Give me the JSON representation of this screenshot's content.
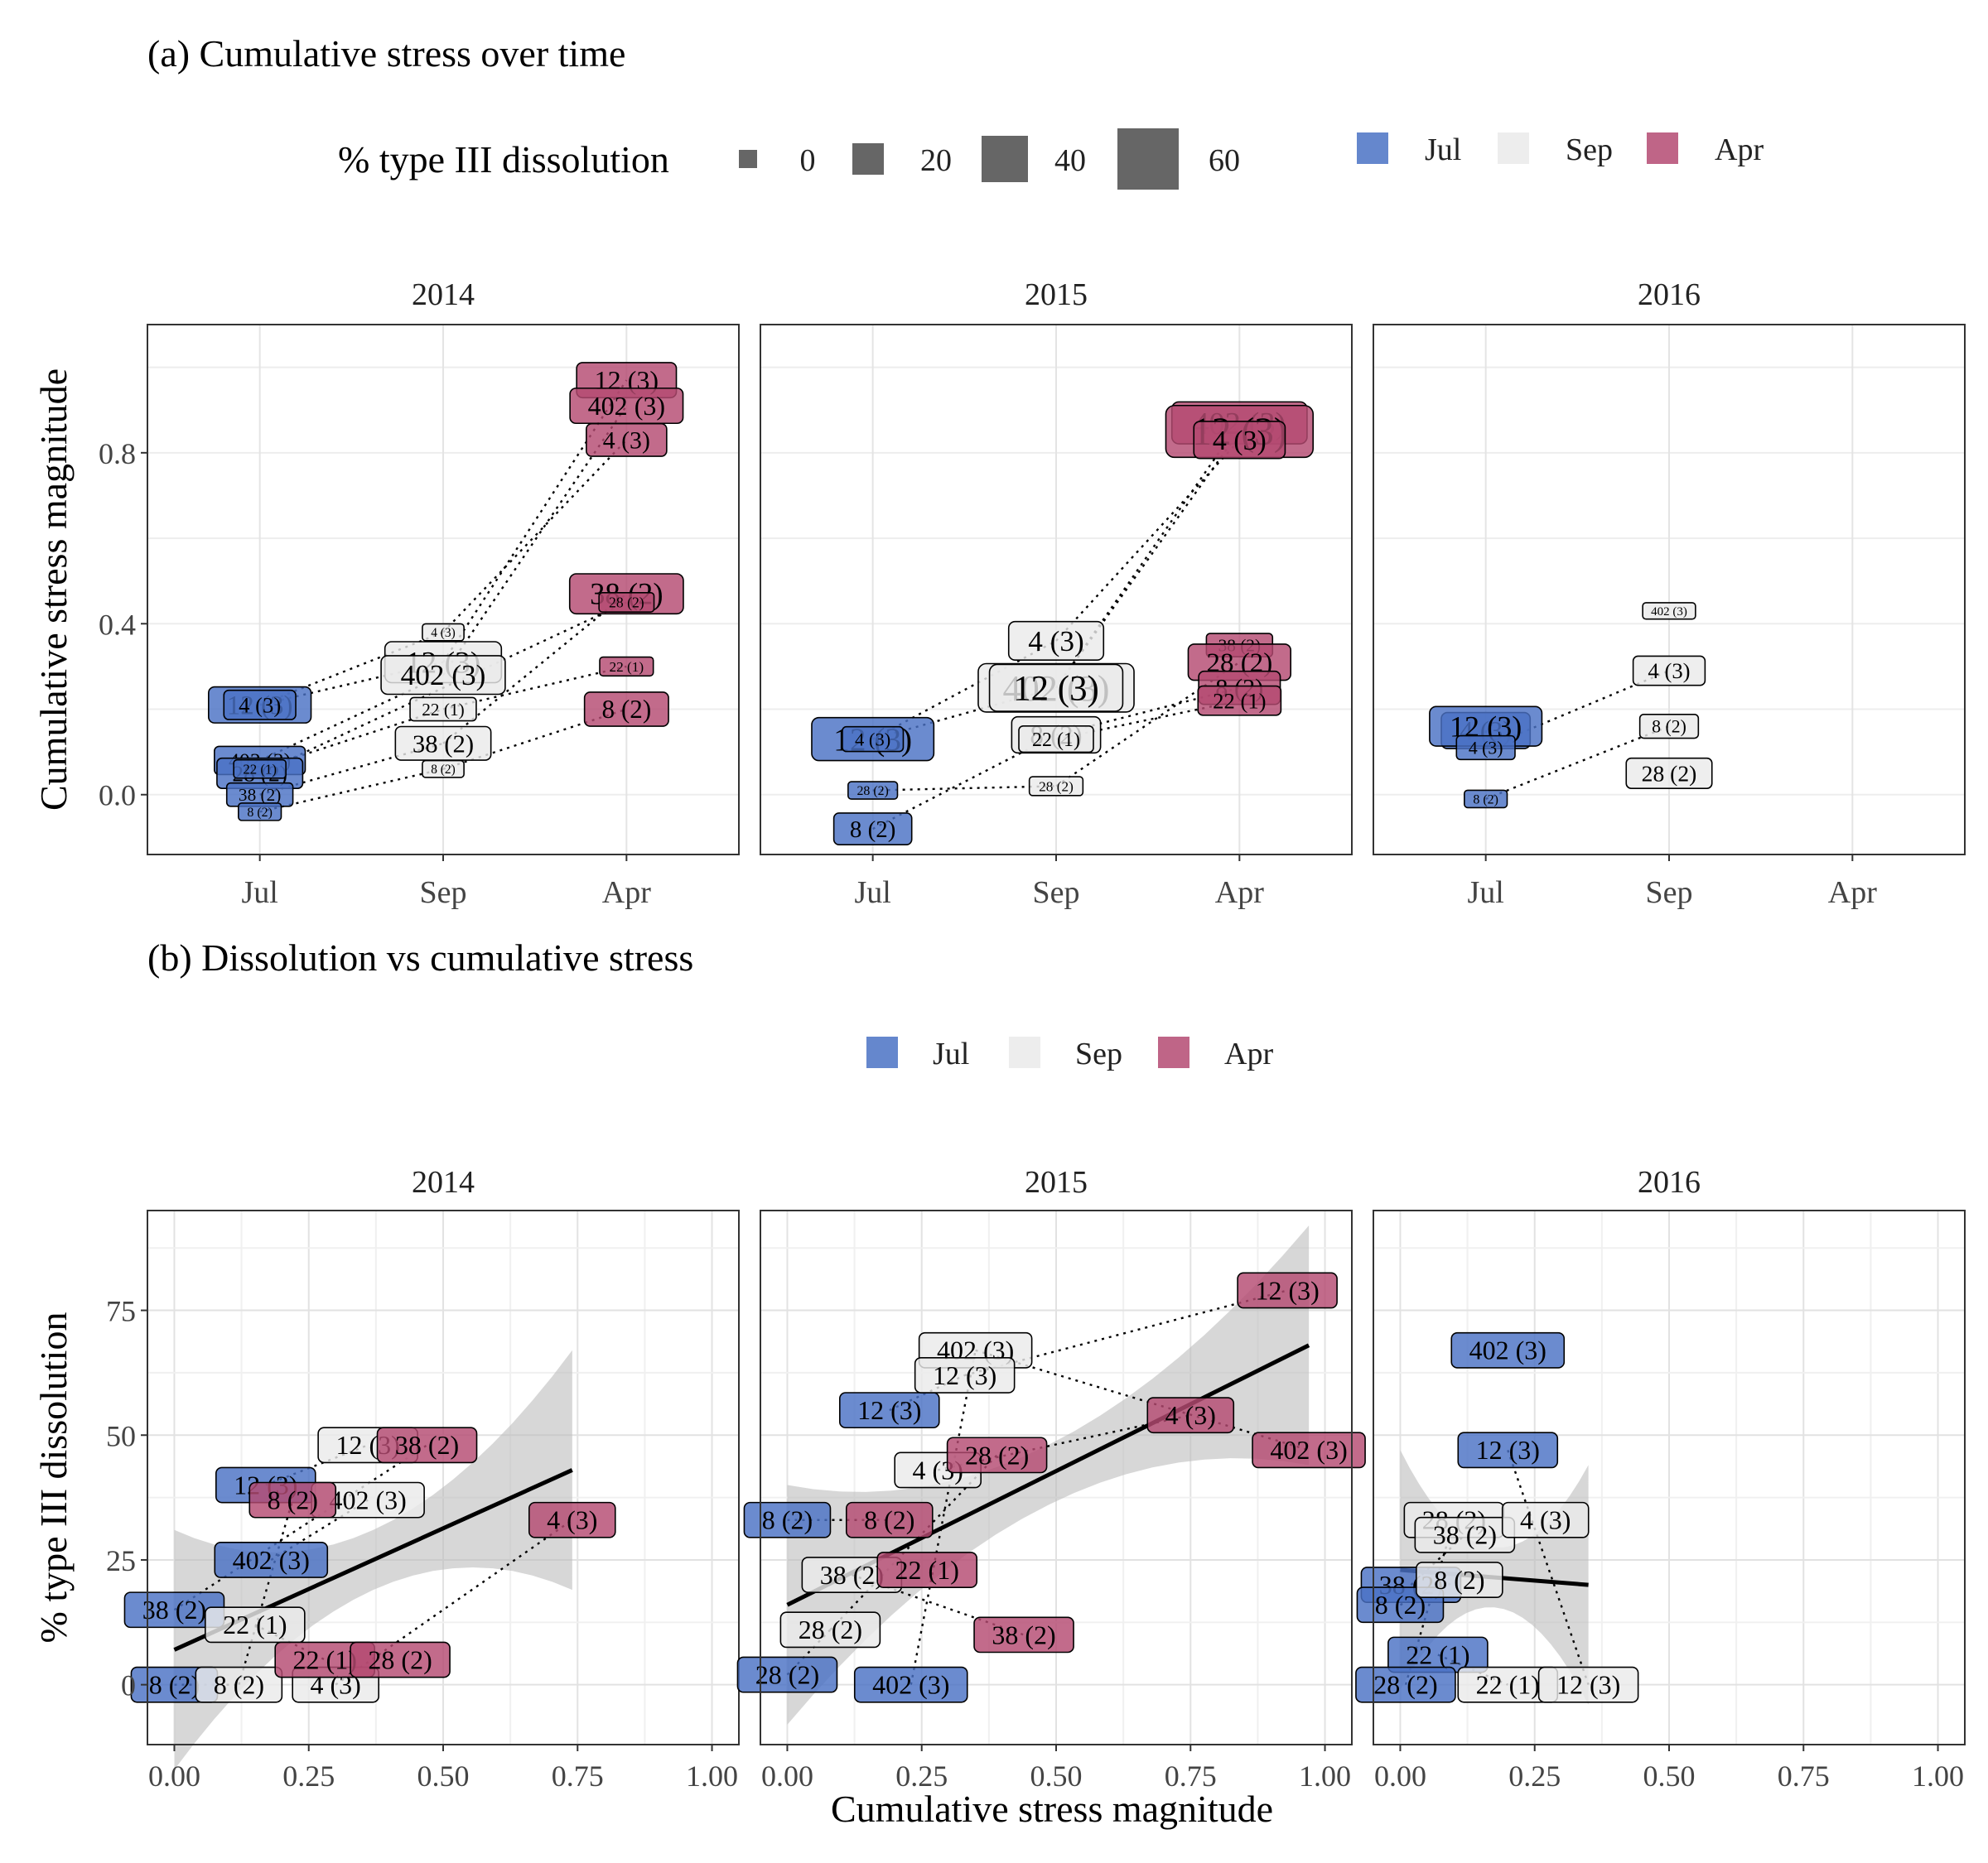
{
  "colors": {
    "Jul": "#4a72c4",
    "Sep": "#eaeaea",
    "Apr": "#b44a72",
    "line": "#000000",
    "ribbon": "#bdbdbd"
  },
  "panel_a": {
    "title": "(a) Cumulative stress over time",
    "size_legend": {
      "title": "% type III dissolution",
      "values": [
        "0",
        "20",
        "40",
        "60"
      ]
    },
    "fill_legend": [
      "Jul",
      "Sep",
      "Apr"
    ]
  },
  "panel_b": {
    "title": "(b) Dissolution vs cumulative stress",
    "fill_legend": [
      "Jul",
      "Sep",
      "Apr"
    ]
  },
  "chart_data": [
    {
      "type": "scatter",
      "title": "(a) Cumulative stress over time",
      "xlabel": "",
      "ylabel": "Cumulative stress magnitude",
      "x_categories": [
        "Jul",
        "Sep",
        "Apr"
      ],
      "y_ticks": [
        "0.0",
        "0.4",
        "0.8"
      ],
      "ylim": [
        -0.14,
        1.1
      ],
      "grid": true,
      "legend": "top",
      "facets": [
        {
          "name": "2014",
          "points": [
            {
              "label": "12 (3)",
              "month": "Jul",
              "y": 0.21,
              "diss": 40
            },
            {
              "label": "4 (3)",
              "month": "Jul",
              "y": 0.21,
              "diss": 26
            },
            {
              "label": "402 (3)",
              "month": "Jul",
              "y": 0.08,
              "diss": 24
            },
            {
              "label": "28 (2)",
              "month": "Jul",
              "y": 0.05,
              "diss": 28
            },
            {
              "label": "38 (2)",
              "month": "Jul",
              "y": 0.0,
              "diss": 14
            },
            {
              "label": "8 (2)",
              "month": "Jul",
              "y": -0.04,
              "diss": 2
            },
            {
              "label": "22 (1)",
              "month": "Jul",
              "y": 0.06,
              "diss": 4
            },
            {
              "label": "12 (3)",
              "month": "Sep",
              "y": 0.31,
              "diss": 50
            },
            {
              "label": "402 (3)",
              "month": "Sep",
              "y": 0.28,
              "diss": 45
            },
            {
              "label": "22 (1)",
              "month": "Sep",
              "y": 0.2,
              "diss": 14
            },
            {
              "label": "38 (2)",
              "month": "Sep",
              "y": 0.12,
              "diss": 35
            },
            {
              "label": "4 (3)",
              "month": "Sep",
              "y": 0.38,
              "diss": 1
            },
            {
              "label": "8 (2)",
              "month": "Sep",
              "y": 0.06,
              "diss": 1
            },
            {
              "label": "12 (3)",
              "month": "Apr",
              "y": 0.97,
              "diss": 38
            },
            {
              "label": "402 (3)",
              "month": "Apr",
              "y": 0.91,
              "diss": 38
            },
            {
              "label": "4 (3)",
              "month": "Apr",
              "y": 0.83,
              "diss": 33
            },
            {
              "label": "38 (2)",
              "month": "Apr",
              "y": 0.47,
              "diss": 48
            },
            {
              "label": "28 (2)",
              "month": "Apr",
              "y": 0.45,
              "diss": 6
            },
            {
              "label": "22 (1)",
              "month": "Apr",
              "y": 0.3,
              "diss": 5
            },
            {
              "label": "8 (2)",
              "month": "Apr",
              "y": 0.2,
              "diss": 36
            }
          ]
        },
        {
          "name": "2015",
          "points": [
            {
              "label": "12 (3)",
              "month": "Jul",
              "y": 0.13,
              "diss": 54
            },
            {
              "label": "4 (3)",
              "month": "Jul",
              "y": 0.13,
              "diss": 17
            },
            {
              "label": "28 (2)",
              "month": "Jul",
              "y": 0.01,
              "diss": 2
            },
            {
              "label": "8 (2)",
              "month": "Jul",
              "y": -0.08,
              "diss": 31
            },
            {
              "label": "4 (3)",
              "month": "Sep",
              "y": 0.36,
              "diss": 45
            },
            {
              "label": "402 (3)",
              "month": "Sep",
              "y": 0.25,
              "diss": 65
            },
            {
              "label": "12 (3)",
              "month": "Sep",
              "y": 0.25,
              "diss": 62
            },
            {
              "label": "8 (2)",
              "month": "Sep",
              "y": 0.14,
              "diss": 40
            },
            {
              "label": "22 (1)",
              "month": "Sep",
              "y": 0.13,
              "diss": 20
            },
            {
              "label": "28 (2)",
              "month": "Sep",
              "y": 0.02,
              "diss": 5
            },
            {
              "label": "402 (3)",
              "month": "Apr",
              "y": 0.87,
              "diss": 52
            },
            {
              "label": "12 (3)",
              "month": "Apr",
              "y": 0.85,
              "diss": 72
            },
            {
              "label": "4 (3)",
              "month": "Apr",
              "y": 0.83,
              "diss": 42
            },
            {
              "label": "38 (2)",
              "month": "Apr",
              "y": 0.35,
              "diss": 14
            },
            {
              "label": "28 (2)",
              "month": "Apr",
              "y": 0.31,
              "diss": 40
            },
            {
              "label": "8 (2)",
              "month": "Apr",
              "y": 0.25,
              "diss": 34
            },
            {
              "label": "22 (1)",
              "month": "Apr",
              "y": 0.22,
              "diss": 26
            }
          ]
        },
        {
          "name": "2016",
          "points": [
            {
              "label": "4 (3)",
              "month": "Jul",
              "y": 0.15,
              "diss": 40
            },
            {
              "label": "12 (3)",
              "month": "Jul",
              "y": 0.16,
              "diss": 47
            },
            {
              "label": "4 (3)",
              "month": "Jul",
              "y": 0.11,
              "diss": 15
            },
            {
              "label": "8 (2)",
              "month": "Jul",
              "y": -0.01,
              "diss": 2
            },
            {
              "label": "402 (3)",
              "month": "Sep",
              "y": 0.43,
              "diss": 0
            },
            {
              "label": "4 (3)",
              "month": "Sep",
              "y": 0.29,
              "diss": 26
            },
            {
              "label": "8 (2)",
              "month": "Sep",
              "y": 0.16,
              "diss": 15
            },
            {
              "label": "28 (2)",
              "month": "Sep",
              "y": 0.05,
              "diss": 28
            }
          ]
        }
      ]
    },
    {
      "type": "scatter",
      "title": "(b) Dissolution vs cumulative stress",
      "xlabel": "Cumulative stress magnitude",
      "ylabel": "% type III dissolution",
      "x_ticks": [
        "0.00",
        "0.25",
        "0.50",
        "0.75",
        "1.00"
      ],
      "y_ticks": [
        "0",
        "25",
        "50",
        "75"
      ],
      "xlim": [
        -0.05,
        1.05
      ],
      "ylim": [
        -12,
        95
      ],
      "grid": true,
      "legend": "top",
      "facets": [
        {
          "name": "2014",
          "points": [
            {
              "label": "38 (2)",
              "month": "Jul",
              "x": 0.0,
              "y": 15
            },
            {
              "label": "8 (2)",
              "month": "Jul",
              "x": 0.0,
              "y": 0
            },
            {
              "label": "402 (3)",
              "month": "Jul",
              "x": 0.18,
              "y": 25
            },
            {
              "label": "12 (3)",
              "month": "Jul",
              "x": 0.17,
              "y": 40
            },
            {
              "label": "22 (1)",
              "month": "Sep",
              "x": 0.15,
              "y": 12
            },
            {
              "label": "8 (2)",
              "month": "Sep",
              "x": 0.12,
              "y": 0
            },
            {
              "label": "4 (3)",
              "month": "Sep",
              "x": 0.3,
              "y": 0
            },
            {
              "label": "12 (3)",
              "month": "Sep",
              "x": 0.36,
              "y": 48
            },
            {
              "label": "402 (3)",
              "month": "Sep",
              "x": 0.36,
              "y": 37
            },
            {
              "label": "38 (2)",
              "month": "Apr",
              "x": 0.47,
              "y": 48
            },
            {
              "label": "8 (2)",
              "month": "Apr",
              "x": 0.22,
              "y": 37
            },
            {
              "label": "22 (1)",
              "month": "Apr",
              "x": 0.28,
              "y": 5
            },
            {
              "label": "28 (2)",
              "month": "Apr",
              "x": 0.42,
              "y": 5
            },
            {
              "label": "4 (3)",
              "month": "Apr",
              "x": 0.74,
              "y": 33
            }
          ],
          "fit": {
            "x0": 0.0,
            "y0": 7,
            "x1": 0.74,
            "y1": 43
          }
        },
        {
          "name": "2015",
          "points": [
            {
              "label": "8 (2)",
              "month": "Jul",
              "x": 0.0,
              "y": 33
            },
            {
              "label": "28 (2)",
              "month": "Jul",
              "x": 0.0,
              "y": 2
            },
            {
              "label": "12 (3)",
              "month": "Jul",
              "x": 0.19,
              "y": 55
            },
            {
              "label": "402 (3)",
              "month": "Jul",
              "x": 0.23,
              "y": 0
            },
            {
              "label": "402 (3)",
              "month": "Sep",
              "x": 0.35,
              "y": 67
            },
            {
              "label": "12 (3)",
              "month": "Sep",
              "x": 0.33,
              "y": 62
            },
            {
              "label": "4 (3)",
              "month": "Sep",
              "x": 0.28,
              "y": 43
            },
            {
              "label": "38 (2)",
              "month": "Sep",
              "x": 0.12,
              "y": 22
            },
            {
              "label": "28 (2)",
              "month": "Sep",
              "x": 0.08,
              "y": 11
            },
            {
              "label": "12 (3)",
              "month": "Apr",
              "x": 0.93,
              "y": 79
            },
            {
              "label": "4 (3)",
              "month": "Apr",
              "x": 0.75,
              "y": 54
            },
            {
              "label": "402 (3)",
              "month": "Apr",
              "x": 0.97,
              "y": 47
            },
            {
              "label": "28 (2)",
              "month": "Apr",
              "x": 0.39,
              "y": 46
            },
            {
              "label": "8 (2)",
              "month": "Apr",
              "x": 0.19,
              "y": 33
            },
            {
              "label": "22 (1)",
              "month": "Apr",
              "x": 0.26,
              "y": 23
            },
            {
              "label": "38 (2)",
              "month": "Apr",
              "x": 0.44,
              "y": 10
            }
          ],
          "fit": {
            "x0": 0.0,
            "y0": 16,
            "x1": 0.97,
            "y1": 68
          }
        },
        {
          "name": "2016",
          "points": [
            {
              "label": "402 (3)",
              "month": "Jul",
              "x": 0.2,
              "y": 67
            },
            {
              "label": "12 (3)",
              "month": "Jul",
              "x": 0.2,
              "y": 47
            },
            {
              "label": "38 (2)",
              "month": "Jul",
              "x": 0.02,
              "y": 20
            },
            {
              "label": "8 (2)",
              "month": "Jul",
              "x": 0.0,
              "y": 16
            },
            {
              "label": "22 (1)",
              "month": "Jul",
              "x": 0.07,
              "y": 6
            },
            {
              "label": "28 (2)",
              "month": "Jul",
              "x": 0.01,
              "y": 0
            },
            {
              "label": "28 (2)",
              "month": "Sep",
              "x": 0.1,
              "y": 33
            },
            {
              "label": "38 (2)",
              "month": "Sep",
              "x": 0.12,
              "y": 30
            },
            {
              "label": "8 (2)",
              "month": "Sep",
              "x": 0.11,
              "y": 21
            },
            {
              "label": "4 (3)",
              "month": "Sep",
              "x": 0.27,
              "y": 33
            },
            {
              "label": "22 (1)",
              "month": "Sep",
              "x": 0.2,
              "y": 0
            },
            {
              "label": "12 (3)",
              "month": "Sep",
              "x": 0.35,
              "y": 0
            }
          ],
          "fit": {
            "x0": 0.0,
            "y0": 23,
            "x1": 0.35,
            "y1": 20
          }
        }
      ]
    }
  ]
}
